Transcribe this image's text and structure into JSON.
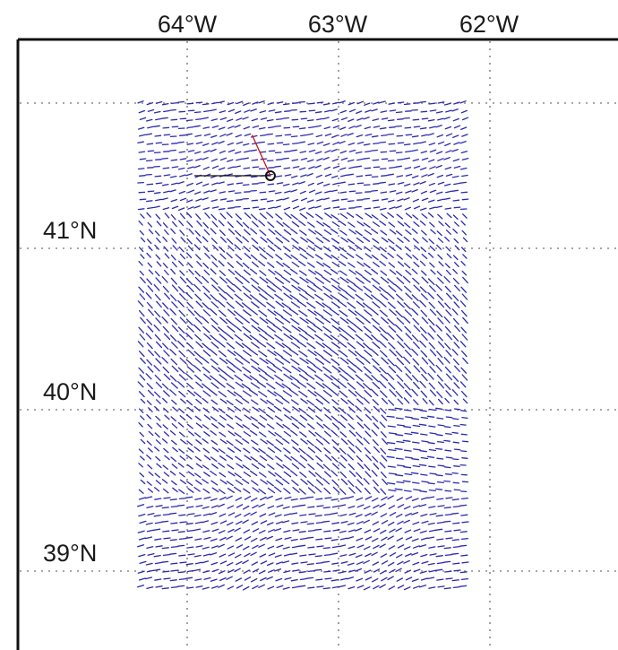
{
  "map": {
    "lon_labels": [
      "64°W",
      "63°W",
      "62°W"
    ],
    "lat_labels": [
      "41°N",
      "40°N",
      "39°N"
    ],
    "lon_ticks": [
      -64,
      -63,
      -62
    ],
    "lat_ticks": [
      41,
      40,
      39
    ],
    "colors": {
      "vectors": "#2a2ab0",
      "frame": "#111111",
      "gridlines": "#8a8a8a",
      "reference_vector_black": "#111111",
      "reference_vector_red": "#cc1111",
      "background": "#ffffff"
    },
    "vector_field": {
      "lon_range": [
        -64.3,
        -62.15
      ],
      "lat_range": [
        38.85,
        41.9
      ]
    },
    "reference_vectors": {
      "origin": {
        "lon": -63.45,
        "lat": 41.45
      },
      "black_tip": {
        "lon": -63.95,
        "lat": 41.45
      },
      "red_tip": {
        "lon": -63.57,
        "lat": 41.7
      }
    }
  }
}
